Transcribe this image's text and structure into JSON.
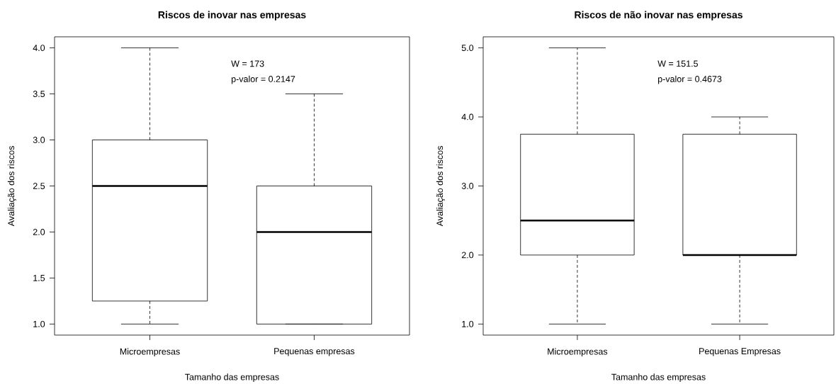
{
  "chart_data": [
    {
      "type": "box",
      "title": "Riscos de inovar nas empresas",
      "xlabel": "Tamanho das empresas",
      "ylabel": "Avaliação dos riscos",
      "categories": [
        "Microempresas",
        "Pequenas empresas"
      ],
      "boxes": [
        {
          "low": 1.0,
          "q1": 1.25,
          "median": 2.5,
          "q3": 3.0,
          "high": 4.0
        },
        {
          "low": 1.0,
          "q1": 1.0,
          "median": 2.0,
          "q3": 2.5,
          "high": 3.5
        }
      ],
      "ylim": [
        0.88,
        4.12
      ],
      "yticks": [
        {
          "value": 1.0,
          "label": "1.0"
        },
        {
          "value": 1.5,
          "label": "1.5"
        },
        {
          "value": 2.0,
          "label": "2.0"
        },
        {
          "value": 2.5,
          "label": "2.5"
        },
        {
          "value": 3.0,
          "label": "3.0"
        },
        {
          "value": 3.5,
          "label": "3.5"
        },
        {
          "value": 4.0,
          "label": "4.0"
        }
      ],
      "annotations": [
        "W = 173",
        "p-valor = 0.2147"
      ]
    },
    {
      "type": "box",
      "title": "Riscos de não inovar nas empresas",
      "xlabel": "Tamanho das empresas",
      "ylabel": "Avaliação dos riscos",
      "categories": [
        "Microempresas",
        "Pequenas Empresas"
      ],
      "boxes": [
        {
          "low": 1.0,
          "q1": 2.0,
          "median": 2.5,
          "q3": 3.75,
          "high": 5.0
        },
        {
          "low": 1.0,
          "q1": 2.0,
          "median": 2.0,
          "q3": 3.75,
          "high": 4.0
        }
      ],
      "ylim": [
        0.84,
        5.16
      ],
      "yticks": [
        {
          "value": 1.0,
          "label": "1.0"
        },
        {
          "value": 2.0,
          "label": "2.0"
        },
        {
          "value": 3.0,
          "label": "3.0"
        },
        {
          "value": 4.0,
          "label": "4.0"
        },
        {
          "value": 5.0,
          "label": "5.0"
        }
      ],
      "annotations": [
        "W = 151.5",
        "p-valor = 0.4673"
      ]
    }
  ]
}
